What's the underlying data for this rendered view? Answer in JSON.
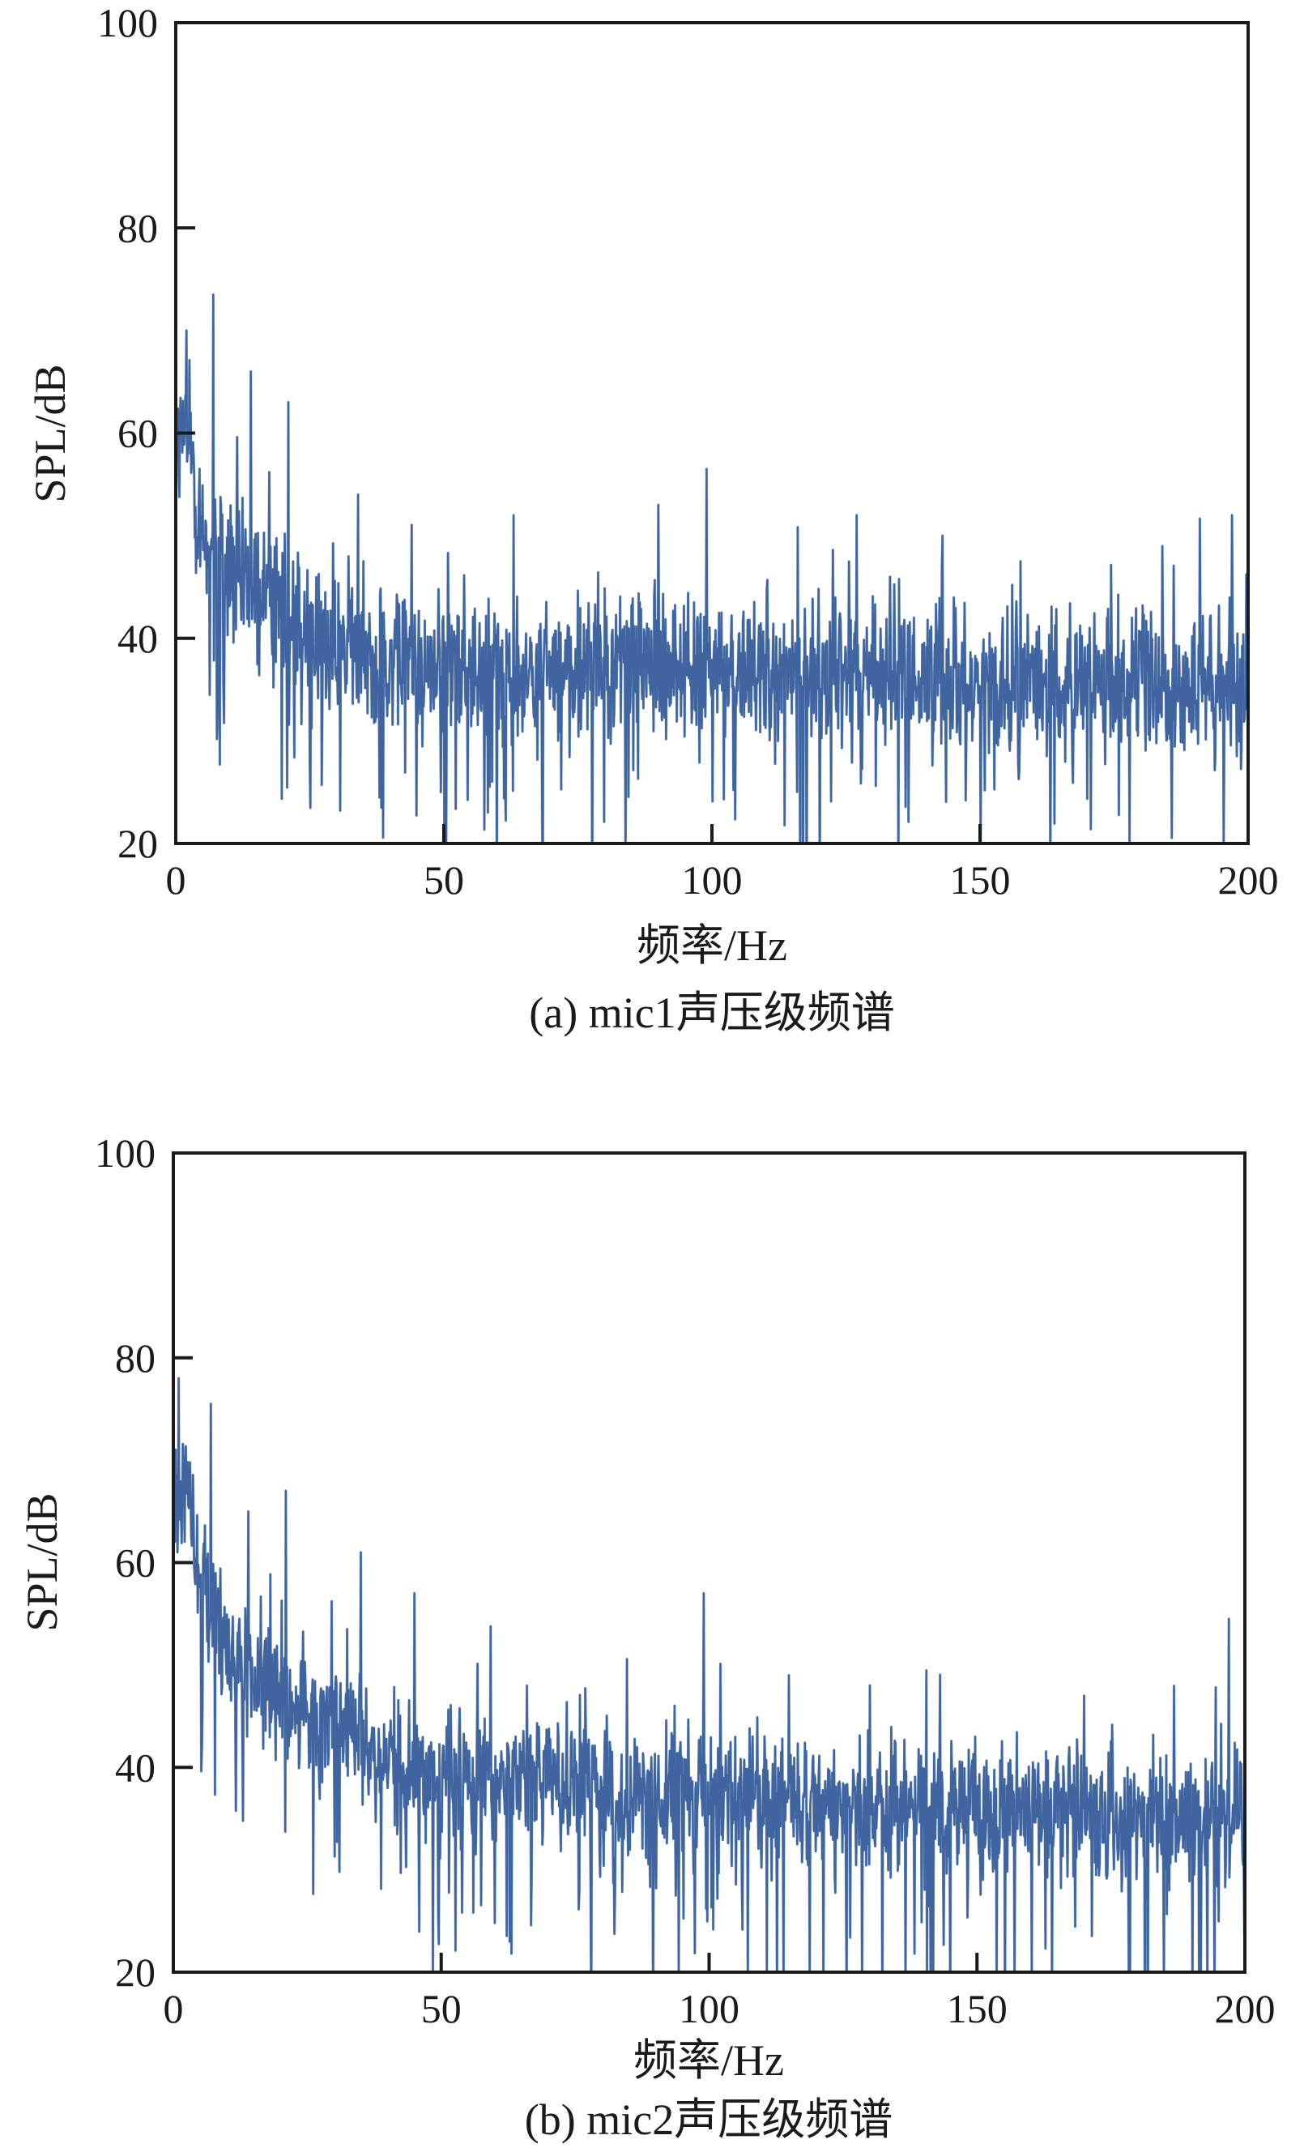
{
  "chart_data": [
    {
      "type": "line",
      "id": "a",
      "xlabel": "频率/Hz",
      "ylabel": "SPL/dB",
      "caption": "(a) mic1声压级频谱",
      "xlim": [
        0,
        200
      ],
      "ylim": [
        20,
        100
      ],
      "xticks": [
        "0",
        "50",
        "100",
        "150",
        "200"
      ],
      "yticks": [
        "20",
        "40",
        "60",
        "80",
        "100"
      ],
      "grid": false,
      "color": "#3f64a0",
      "highlight_color": "#8fb0cf",
      "envelope": {
        "freq": [
          0,
          2,
          5,
          10,
          20,
          30,
          50,
          100,
          150,
          200
        ],
        "mean_db": [
          58,
          60,
          50,
          46,
          43,
          39,
          37,
          37,
          36,
          35
        ],
        "noise_db": 6
      },
      "peaks": [
        {
          "x": 2,
          "y": 70
        },
        {
          "x": 7,
          "y": 73.5
        },
        {
          "x": 14,
          "y": 66
        },
        {
          "x": 21,
          "y": 63
        },
        {
          "x": 34,
          "y": 54
        },
        {
          "x": 63,
          "y": 52
        },
        {
          "x": 90,
          "y": 53
        },
        {
          "x": 99,
          "y": 56.5
        },
        {
          "x": 127,
          "y": 52
        },
        {
          "x": 143,
          "y": 50
        },
        {
          "x": 184,
          "y": 49
        },
        {
          "x": 197,
          "y": 52
        }
      ]
    },
    {
      "type": "line",
      "id": "b",
      "xlabel": "频率/Hz",
      "ylabel": "SPL/dB",
      "caption": "(b) mic2声压级频谱",
      "xlim": [
        0,
        200
      ],
      "ylim": [
        20,
        100
      ],
      "xticks": [
        "0",
        "50",
        "100",
        "150",
        "200"
      ],
      "yticks": [
        "20",
        "40",
        "60",
        "80",
        "100"
      ],
      "grid": false,
      "color": "#3f64a0",
      "highlight_color": "#8fb0cf",
      "envelope": {
        "freq": [
          0,
          2,
          5,
          10,
          20,
          30,
          40,
          50,
          100,
          150,
          200
        ],
        "mean_db": [
          64,
          70,
          58,
          50,
          47,
          44,
          41,
          39,
          37,
          36,
          35
        ],
        "noise_db": 5.5
      },
      "peaks": [
        {
          "x": 1,
          "y": 78
        },
        {
          "x": 7,
          "y": 75.5
        },
        {
          "x": 14,
          "y": 65
        },
        {
          "x": 21,
          "y": 67
        },
        {
          "x": 35,
          "y": 61
        },
        {
          "x": 45,
          "y": 57
        },
        {
          "x": 99,
          "y": 57
        },
        {
          "x": 130,
          "y": 48
        },
        {
          "x": 170,
          "y": 47
        },
        {
          "x": 197,
          "y": 54.5
        }
      ]
    }
  ]
}
